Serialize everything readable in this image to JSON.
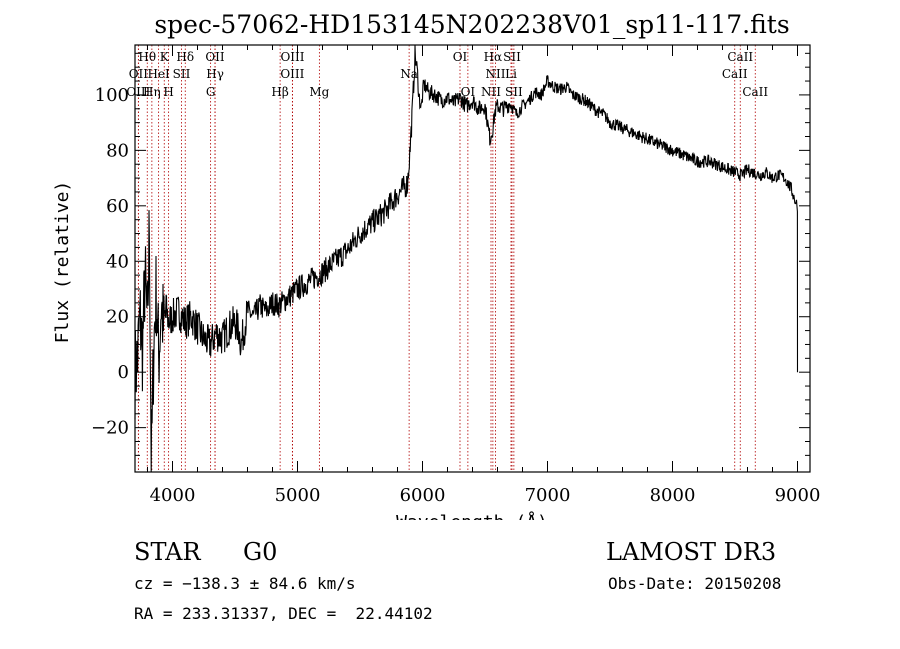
{
  "chart_data": {
    "type": "line",
    "title": "spec-57062-HD153145N202238V01_sp11-117.fits",
    "xlabel": "Wavelength (Å)",
    "ylabel": "Flux (relative)",
    "xlim": [
      3700,
      9100
    ],
    "ylim": [
      -36,
      118
    ],
    "x_ticks": [
      4000,
      5000,
      6000,
      7000,
      8000,
      9000
    ],
    "y_ticks": [
      -20,
      0,
      20,
      40,
      60,
      80,
      100
    ],
    "grid": false,
    "legend": "none",
    "series": [
      {
        "x": [
          3700,
          3720,
          3740,
          3760,
          3780,
          3800,
          3815,
          3830,
          3850,
          3870,
          3890,
          3910,
          3930,
          3950,
          3970,
          4000,
          4050,
          4100,
          4150,
          4200,
          4250,
          4300,
          4350,
          4400,
          4450,
          4500,
          4530,
          4550,
          4600,
          4650,
          4700,
          4750,
          4800,
          4850,
          4900,
          4950,
          5000,
          5100,
          5200,
          5300,
          5400,
          5500,
          5600,
          5700,
          5800,
          5880,
          5900,
          5920,
          5940,
          5960,
          5970,
          5990,
          6010,
          6050,
          6100,
          6150,
          6200,
          6250,
          6300,
          6350,
          6400,
          6450,
          6500,
          6540,
          6563,
          6580,
          6600,
          6650,
          6700,
          6750,
          6800,
          6850,
          6900,
          6950,
          7000,
          7050,
          7100,
          7150,
          7200,
          7250,
          7300,
          7350,
          7400,
          7450,
          7500,
          7600,
          7700,
          7800,
          7900,
          8000,
          8100,
          8200,
          8300,
          8400,
          8500,
          8550,
          8600,
          8650,
          8700,
          8750,
          8800,
          8850,
          8900,
          8950,
          8980,
          9000
        ],
        "y": [
          0,
          5,
          20,
          8,
          35,
          15,
          55,
          -35,
          10,
          30,
          5,
          25,
          15,
          22,
          18,
          20,
          22,
          18,
          20,
          16,
          12,
          10,
          14,
          12,
          16,
          18,
          15,
          10,
          22,
          20,
          24,
          22,
          25,
          24,
          26,
          28,
          30,
          33,
          36,
          40,
          44,
          50,
          54,
          58,
          64,
          68,
          80,
          95,
          115,
          108,
          100,
          95,
          104,
          101,
          100,
          98,
          99,
          97,
          99,
          96,
          98,
          95,
          96,
          84,
          88,
          94,
          96,
          95,
          97,
          93,
          96,
          98,
          101,
          100,
          105,
          103,
          102,
          103,
          100,
          99,
          98,
          96,
          94,
          93,
          90,
          88,
          86,
          84,
          82,
          80,
          78,
          76,
          76,
          74,
          72,
          71,
          73,
          72,
          71,
          72,
          70,
          71,
          70,
          66,
          62,
          60
        ]
      }
    ],
    "spectral_lines": [
      {
        "label": "Hθ",
        "x": 3798,
        "row": 1
      },
      {
        "label": "K",
        "x": 3934,
        "row": 1
      },
      {
        "label": "Hδ",
        "x": 4102,
        "row": 1
      },
      {
        "label": "OII",
        "x": 4340,
        "row": 1
      },
      {
        "label": "OIII",
        "x": 4960,
        "row": 1
      },
      {
        "label": "OI",
        "x": 6300,
        "row": 1
      },
      {
        "label": "Hα",
        "x": 6563,
        "row": 1
      },
      {
        "label": "SII",
        "x": 6716,
        "row": 1
      },
      {
        "label": "CaII",
        "x": 8542,
        "row": 1
      },
      {
        "label": "OII",
        "x": 3727,
        "row": 2
      },
      {
        "label": "HeI",
        "x": 3889,
        "row": 2
      },
      {
        "label": "SII",
        "x": 4072,
        "row": 2
      },
      {
        "label": "Hγ",
        "x": 4341,
        "row": 2
      },
      {
        "label": "OIII",
        "x": 4959,
        "row": 2
      },
      {
        "label": "Na",
        "x": 5893,
        "row": 2
      },
      {
        "label": "NII",
        "x": 6584,
        "row": 2
      },
      {
        "label": "Li",
        "x": 6708,
        "row": 2
      },
      {
        "label": "CaII",
        "x": 8498,
        "row": 2
      },
      {
        "label": "OIII",
        "x": 3727,
        "row": 3
      },
      {
        "label": "Hη",
        "x": 3835,
        "row": 3
      },
      {
        "label": "H",
        "x": 3969,
        "row": 3
      },
      {
        "label": "G",
        "x": 4305,
        "row": 3
      },
      {
        "label": "Hβ",
        "x": 4861,
        "row": 3
      },
      {
        "label": "Mg",
        "x": 5175,
        "row": 3
      },
      {
        "label": "OI",
        "x": 6363,
        "row": 3
      },
      {
        "label": "NII",
        "x": 6548,
        "row": 3
      },
      {
        "label": "SII",
        "x": 6731,
        "row": 3
      },
      {
        "label": "CaII",
        "x": 8662,
        "row": 3
      }
    ]
  },
  "info": {
    "object_class": "STAR",
    "subclass": "G0",
    "survey": "LAMOST DR3",
    "redshift": "cz = −138.3 ± 84.6 km/s",
    "obs_date": "Obs-Date: 20150208",
    "coords": "RA = 233.31337, DEC =  22.44102"
  }
}
